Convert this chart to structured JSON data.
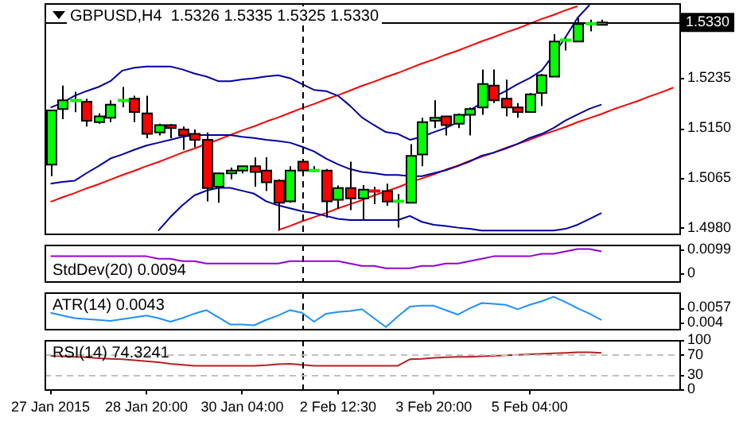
{
  "chart_data": [
    {
      "type": "candlestick",
      "title": "GBPUSD,H4  1.5326 1.5335 1.5325 1.5330",
      "categories": [
        null,
        null,
        null,
        null,
        null,
        null,
        null,
        null,
        null,
        null,
        null,
        null,
        null,
        null,
        null,
        null,
        null,
        null,
        null,
        null,
        null,
        null,
        null,
        null,
        null,
        null,
        null,
        null,
        null,
        null,
        null,
        null,
        null,
        null,
        null,
        null,
        null,
        null,
        null,
        null,
        null,
        null,
        null,
        null,
        null,
        null,
        null,
        null,
        null,
        null,
        null,
        null,
        null
      ],
      "ohlc": [
        [
          1.50875,
          1.518,
          1.5068,
          1.518
        ],
        [
          1.51825,
          1.52225,
          1.5165,
          1.51975
        ],
        [
          1.5197,
          1.5212,
          1.5177,
          1.5198
        ],
        [
          1.5195,
          1.52,
          1.51525,
          1.51625
        ],
        [
          1.516,
          1.5175,
          1.51575,
          1.517
        ],
        [
          1.51675,
          1.51975,
          1.516,
          1.519
        ],
        [
          1.5197,
          1.522,
          1.51855,
          1.5198
        ],
        [
          1.52,
          1.5205,
          1.516,
          1.51775
        ],
        [
          1.5175,
          1.5205,
          1.51325,
          1.514
        ],
        [
          1.51425,
          1.51575,
          1.51375,
          1.5155
        ],
        [
          1.5155,
          1.5157,
          1.51325,
          1.515
        ],
        [
          1.51475,
          1.51525,
          1.51125,
          1.51375
        ],
        [
          1.514,
          1.51475,
          1.5117,
          1.513
        ],
        [
          1.513,
          1.51425,
          1.5025,
          1.50475
        ],
        [
          1.505,
          1.50745,
          1.50225,
          1.50725
        ],
        [
          1.50725,
          1.50825,
          1.50625,
          1.50775
        ],
        [
          1.50775,
          1.5085,
          1.50725,
          1.5085
        ],
        [
          1.5085,
          1.51,
          1.505,
          1.5075
        ],
        [
          1.50775,
          1.51,
          1.50425,
          1.50575
        ],
        [
          1.506,
          1.50625,
          1.4975,
          1.50225
        ],
        [
          1.5025,
          1.5085,
          1.50225,
          1.50775
        ],
        [
          1.50925,
          1.5095,
          1.50725,
          1.50775
        ],
        [
          1.50775,
          1.5085,
          1.5075,
          1.5078
        ],
        [
          1.50775,
          1.508,
          1.4997,
          1.5025
        ],
        [
          1.50275,
          1.5052,
          1.50125,
          1.50475
        ],
        [
          1.50475,
          1.50925,
          1.501,
          1.503
        ],
        [
          1.503,
          1.50525,
          1.49925,
          1.5045
        ],
        [
          1.50425,
          1.505,
          1.502,
          1.5042
        ],
        [
          1.50425,
          1.5055,
          1.50175,
          1.50245
        ],
        [
          1.5025,
          1.50375,
          1.498,
          1.5025
        ],
        [
          1.50225,
          1.51225,
          1.50225,
          1.51025
        ],
        [
          1.5105,
          1.51675,
          1.5085,
          1.516
        ],
        [
          1.51625,
          1.51975,
          1.515,
          1.51675
        ],
        [
          1.517,
          1.517,
          1.51375,
          1.5155
        ],
        [
          1.51575,
          1.5175,
          1.515,
          1.51725
        ],
        [
          1.51725,
          1.5185,
          1.51375,
          1.51825
        ],
        [
          1.5185,
          1.525,
          1.51725,
          1.5225
        ],
        [
          1.52225,
          1.525,
          1.51925,
          1.51975
        ],
        [
          1.52,
          1.52325,
          1.517,
          1.5185
        ],
        [
          1.5185,
          1.51925,
          1.51675,
          1.51775
        ],
        [
          1.51775,
          1.521,
          1.51775,
          1.52075
        ],
        [
          1.521,
          1.52425,
          1.51875,
          1.524
        ],
        [
          1.52375,
          1.531,
          1.52375,
          1.52975
        ],
        [
          1.53,
          1.5305,
          1.52825,
          1.5302
        ],
        [
          1.52975,
          1.53375,
          1.52975,
          1.53275
        ],
        [
          1.5328,
          1.5335,
          1.5315,
          1.5329
        ],
        [
          1.5326,
          1.5335,
          1.5325,
          1.533
        ],
        null,
        null,
        null,
        null,
        null,
        null
      ],
      "colors": [
        "#00ff00",
        "#00ff00",
        "#00ff00",
        "#ff0000",
        "#00ff00",
        "#00ff00",
        "#00ff00",
        "#ff0000",
        "#ff0000",
        "#00ff00",
        "#ff0000",
        "#ff0000",
        "#ff0000",
        "#ff0000",
        "#00ff00",
        "#00ff00",
        "#00ff00",
        "#ff0000",
        "#ff0000",
        "#ff0000",
        "#00ff00",
        "#ff0000",
        "#00ff00",
        "#ff0000",
        "#00ff00",
        "#ff0000",
        "#00ff00",
        "#ff0000",
        "#ff0000",
        "#00ff00",
        "#00ff00",
        "#00ff00",
        "#00ff00",
        "#ff0000",
        "#00ff00",
        "#00ff00",
        "#00ff00",
        "#ff0000",
        "#ff0000",
        "#ff0000",
        "#00ff00",
        "#00ff00",
        "#00ff00",
        "#00ff00",
        "#00ff00",
        "#00ff00",
        "#00ff00",
        null,
        null,
        null,
        null,
        null,
        null
      ],
      "series": [
        {
          "type": "line",
          "color": "#0000a0",
          "values": [
            1.5185,
            1.5193,
            1.5205,
            1.5213,
            1.522,
            1.523,
            1.5248,
            1.5253,
            1.5255,
            1.5255,
            1.5255,
            1.525,
            1.5243,
            1.5238,
            1.523,
            1.523,
            1.5233,
            1.5235,
            1.5238,
            1.524,
            1.5235,
            1.5225,
            1.5215,
            1.5213,
            1.5205,
            1.5188,
            1.5168,
            1.5155,
            1.5143,
            1.514,
            1.513,
            1.5135,
            1.5143,
            1.515,
            1.516,
            1.518,
            1.5193,
            1.5203,
            1.5213,
            1.5225,
            1.5235,
            1.5248,
            1.5275,
            1.5305,
            1.5338,
            1.536,
            null,
            null,
            null,
            null,
            null,
            null,
            null
          ]
        },
        {
          "type": "line",
          "color": "#0000a0",
          "values": [
            1.5055,
            1.5058,
            1.506,
            1.5073,
            1.5085,
            1.5098,
            1.5105,
            1.5113,
            1.512,
            1.5125,
            1.513,
            1.5135,
            1.5138,
            1.5138,
            1.5138,
            1.5138,
            1.5135,
            1.5133,
            1.513,
            1.5128,
            1.5125,
            1.5118,
            1.511,
            1.5098,
            1.5088,
            1.508,
            1.5075,
            1.5073,
            1.507,
            1.507,
            1.5068,
            1.5068,
            1.5073,
            1.5078,
            1.5085,
            1.5093,
            1.5103,
            1.5108,
            1.5115,
            1.5123,
            1.5133,
            1.514,
            1.515,
            1.5163,
            1.5173,
            1.5183,
            1.519,
            null,
            null,
            null,
            null,
            null,
            null
          ]
        },
        {
          "type": "line",
          "color": "#0000a0",
          "values": [
            null,
            null,
            null,
            null,
            null,
            null,
            null,
            null,
            null,
            1.4975,
            1.4998,
            1.5018,
            1.5035,
            1.5043,
            1.5048,
            1.5048,
            1.5043,
            1.5038,
            1.5025,
            1.5018,
            1.5013,
            1.5008,
            1.5005,
            1.5,
            1.4995,
            1.4993,
            1.4993,
            1.4993,
            1.4993,
            1.4993,
            1.5,
            1.499,
            1.4985,
            1.4983,
            1.498,
            1.4978,
            1.4975,
            1.4975,
            1.4975,
            1.4975,
            1.4975,
            1.4975,
            1.4975,
            1.4978,
            1.4985,
            1.4995,
            1.5005,
            null,
            null,
            null,
            null,
            null,
            null
          ]
        },
        {
          "type": "line",
          "color": "#ff0000",
          "values": [
            1.5024,
            1.5032,
            1.5039,
            1.5047,
            1.5054,
            1.5062,
            1.507,
            1.5077,
            1.5085,
            1.5092,
            1.51,
            1.5108,
            1.5115,
            1.5123,
            1.513,
            1.5138,
            1.5146,
            1.5153,
            1.5161,
            1.5168,
            1.5176,
            1.5184,
            1.5191,
            1.5199,
            1.5206,
            1.5214,
            1.5222,
            1.5229,
            1.5237,
            1.5244,
            1.5252,
            1.526,
            1.5267,
            1.5275,
            1.5282,
            1.529,
            1.5298,
            1.5305,
            1.5313,
            1.532,
            1.5328,
            1.5336,
            1.5343,
            1.5351,
            1.5358,
            null,
            null,
            null,
            null,
            null,
            null,
            null,
            null
          ]
        },
        {
          "type": "line",
          "color": "#ff0000",
          "values": [
            null,
            null,
            null,
            null,
            null,
            null,
            null,
            null,
            null,
            null,
            null,
            null,
            null,
            null,
            null,
            null,
            null,
            null,
            null,
            1.4976,
            1.4983,
            1.4991,
            1.4998,
            1.5005,
            1.5013,
            1.502,
            1.5027,
            1.5035,
            1.5042,
            1.5049,
            1.5057,
            1.5064,
            1.5071,
            1.5079,
            1.5086,
            1.5094,
            1.5101,
            1.5108,
            1.5116,
            1.5123,
            1.513,
            1.5138,
            1.5145,
            1.5152,
            1.516,
            1.5167,
            1.5174,
            1.5182,
            1.5189,
            1.5196,
            1.5204,
            1.5211,
            1.5219
          ]
        }
      ],
      "ylim": [
        1.497,
        1.5363
      ],
      "yticks": [
        {
          "value": 1.498,
          "label": "1.4980"
        },
        {
          "value": 1.5065,
          "label": "1.5065"
        },
        {
          "value": 1.515,
          "label": "1.5150"
        },
        {
          "value": 1.5235,
          "label": "1.5235"
        }
      ],
      "ref_lines": [
        {
          "axis": "y",
          "value": 1.533,
          "label": "1.5330",
          "color": "#000000"
        }
      ],
      "tick_labels": "y",
      "grid": false,
      "legend": false,
      "marker": "none"
    },
    {
      "type": "line",
      "title": "StdDev(20) 0.0094",
      "categories": [
        null,
        null,
        null,
        null,
        null,
        null,
        null,
        null,
        null,
        null,
        null,
        null,
        null,
        null,
        null,
        null,
        null,
        null,
        null,
        null,
        null,
        null,
        null,
        null,
        null,
        null,
        null,
        null,
        null,
        null,
        null,
        null,
        null,
        null,
        null,
        null,
        null,
        null,
        null,
        null,
        null,
        null,
        null,
        null,
        null,
        null,
        null,
        null,
        null,
        null,
        null,
        null,
        null
      ],
      "series": [
        {
          "color": "#9400d3",
          "values": [
            0.007,
            0.007,
            0.007,
            0.007,
            0.007,
            0.007,
            0.007,
            0.007,
            0.007,
            0.006,
            0.006,
            0.005,
            0.005,
            0.004,
            0.004,
            0.004,
            0.004,
            0.004,
            0.004,
            0.004,
            0.005,
            0.005,
            0.005,
            0.005,
            0.005,
            0.004,
            0.003,
            0.003,
            0.002,
            0.002,
            0.002,
            0.003,
            0.003,
            0.004,
            0.004,
            0.005,
            0.006,
            0.007,
            0.007,
            0.007,
            0.007,
            0.008,
            0.008,
            0.009,
            0.01,
            0.01,
            0.009,
            null,
            null,
            null,
            null,
            null,
            null
          ]
        }
      ],
      "ylim": [
        -0.0033,
        0.0118
      ],
      "yticks": [
        0,
        0.0099
      ],
      "tick_labels": "y",
      "grid": false,
      "legend": false,
      "marker": "none"
    },
    {
      "type": "line",
      "title": "ATR(14) 0.0043",
      "categories": [
        null,
        null,
        null,
        null,
        null,
        null,
        null,
        null,
        null,
        null,
        null,
        null,
        null,
        null,
        null,
        null,
        null,
        null,
        null,
        null,
        null,
        null,
        null,
        null,
        null,
        null,
        null,
        null,
        null,
        null,
        null,
        null,
        null,
        null,
        null,
        null,
        null,
        null,
        null,
        null,
        null,
        null,
        null,
        null,
        null,
        null,
        null,
        null,
        null,
        null,
        null,
        null,
        null
      ],
      "series": [
        {
          "color": "#1e90ff",
          "values": [
            0.0051,
            0.0048,
            0.0045,
            0.0044,
            0.0043,
            0.0042,
            0.0044,
            0.0046,
            0.0048,
            0.0045,
            0.0041,
            0.0045,
            0.005,
            0.0054,
            0.0046,
            0.0038,
            0.0038,
            0.0037,
            0.0043,
            0.0048,
            0.0054,
            0.0051,
            0.0041,
            0.005,
            0.0052,
            0.0053,
            0.0055,
            0.0045,
            0.0035,
            0.0047,
            0.0058,
            0.0059,
            0.0059,
            0.0054,
            0.0049,
            0.0056,
            0.0062,
            0.0061,
            0.006,
            0.0055,
            0.006,
            0.0064,
            0.0069,
            0.0063,
            0.0056,
            0.005,
            0.0043,
            null,
            null,
            null,
            null,
            null,
            null
          ]
        }
      ],
      "ylim": [
        0.0033,
        0.0074
      ],
      "yticks": [
        0.004,
        0.0057
      ],
      "tick_labels": "y",
      "grid": false,
      "legend": false,
      "marker": "none"
    },
    {
      "type": "line",
      "title": "RSI(14) 74.3241",
      "categories": [
        "27 Jan 2015",
        null,
        null,
        null,
        null,
        null,
        null,
        null,
        "28 Jan 20:00",
        null,
        null,
        null,
        null,
        null,
        null,
        null,
        "30 Jan 04:00",
        null,
        null,
        null,
        null,
        null,
        null,
        null,
        "2 Feb 12:30",
        null,
        null,
        null,
        null,
        null,
        null,
        null,
        "3 Feb 20:00",
        null,
        null,
        null,
        null,
        null,
        null,
        null,
        "5 Feb 04:00",
        null,
        null,
        null,
        null,
        null,
        null,
        null,
        null,
        null,
        null,
        null,
        null
      ],
      "series": [
        {
          "color": "#b22222",
          "values": [
            68,
            67,
            66,
            65,
            63,
            62,
            61,
            59,
            57,
            55,
            52,
            50,
            48,
            48,
            48,
            48,
            48,
            48,
            49,
            51,
            52,
            50,
            48,
            48,
            48,
            48,
            48,
            48,
            48,
            48,
            61,
            62,
            64,
            65,
            66,
            66,
            67,
            68,
            69,
            70,
            71,
            72,
            73,
            74,
            75,
            75,
            74,
            null,
            null,
            null,
            null,
            null,
            null
          ]
        }
      ],
      "ylim": [
        0,
        100
      ],
      "yticks": [
        0,
        30,
        70,
        100
      ],
      "ref_lines": [
        {
          "axis": "y",
          "value": 70,
          "color": "#c0c0c0",
          "line_style": "dashed"
        },
        {
          "axis": "y",
          "value": 30,
          "color": "#c0c0c0",
          "line_style": "dashed"
        }
      ],
      "grid": false,
      "legend": false,
      "marker": "none"
    }
  ]
}
